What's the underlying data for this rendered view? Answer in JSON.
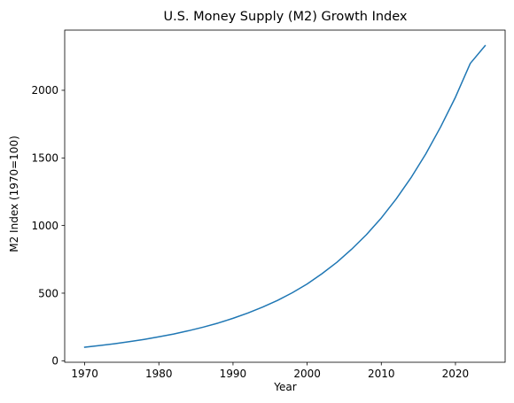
{
  "chart_data": {
    "type": "line",
    "title": "U.S. Money Supply (M2) Growth Index",
    "xlabel": "Year",
    "ylabel": "M2 Index (1970=100)",
    "xlim": [
      1967.3,
      2026.7
    ],
    "ylim": [
      -11,
      2445
    ],
    "xticks": [
      1970,
      1980,
      1990,
      2000,
      2010,
      2020
    ],
    "yticks": [
      0,
      500,
      1000,
      1500,
      2000
    ],
    "grid": false,
    "series": [
      {
        "color": "#1f77b4",
        "x": [
          1970,
          1972,
          1974,
          1976,
          1978,
          1980,
          1982,
          1984,
          1986,
          1988,
          1990,
          1992,
          1994,
          1996,
          1998,
          2000,
          2002,
          2004,
          2006,
          2008,
          2010,
          2012,
          2014,
          2016,
          2018,
          2020,
          2022,
          2024
        ],
        "y": [
          100,
          113,
          126,
          141,
          158,
          177,
          198,
          222,
          249,
          279,
          314,
          353,
          397,
          446,
          503,
          568,
          644,
          728,
          825,
          933,
          1056,
          1196,
          1353,
          1530,
          1729,
          1949,
          2199,
          2330
        ]
      }
    ]
  }
}
